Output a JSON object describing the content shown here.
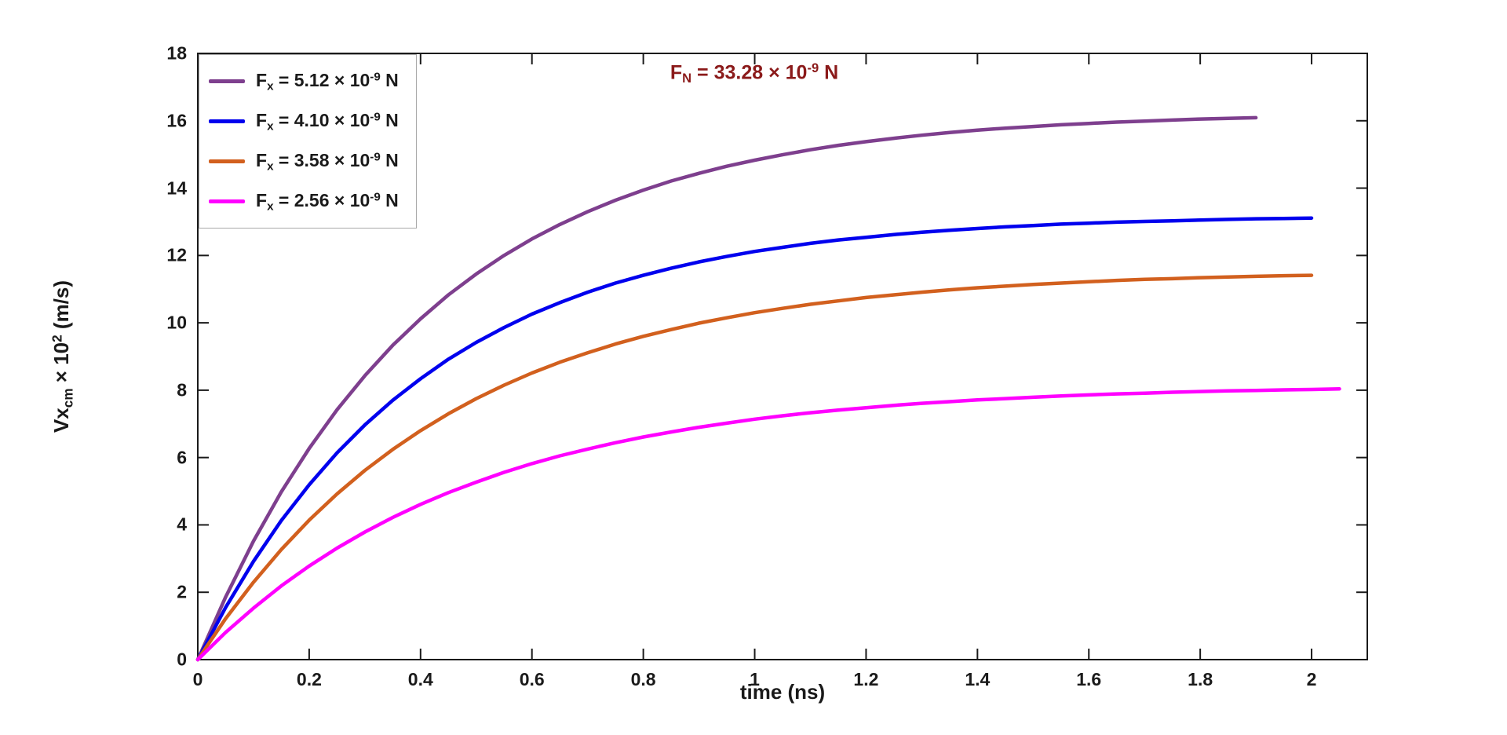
{
  "figure": {
    "background": "#ffffff",
    "axis_color": "#1a1a1a",
    "text_color": "#1a1a1a"
  },
  "annotation": {
    "text": "F_{N} = 33.28 × 10^{-9} N",
    "color": "#8B1A1A"
  },
  "chart_data": {
    "type": "line",
    "title": "",
    "xlabel": "time (ns)",
    "ylabel": "Vx_{cm} × 10^{2} (m/s)",
    "xlim": [
      0,
      2.1
    ],
    "ylim": [
      0,
      18
    ],
    "x_ticks": [
      "0",
      "0.2",
      "0.4",
      "0.6",
      "0.8",
      "1",
      "1.2",
      "1.4",
      "1.6",
      "1.8",
      "2"
    ],
    "y_ticks": [
      "0",
      "2",
      "4",
      "6",
      "8",
      "10",
      "12",
      "14",
      "16",
      "18"
    ],
    "x_start": 0,
    "x_step": 0.05,
    "grid": false,
    "legend_position": "top-left-inside",
    "annotation": "F_N = 33.28 × 10^-9 N",
    "series": [
      {
        "name": "F_{x} = 5.12 × 10^{-9} N",
        "color": "#7E3F8E",
        "values": [
          0,
          1.86,
          3.52,
          4.98,
          6.27,
          7.42,
          8.43,
          9.33,
          10.12,
          10.83,
          11.45,
          12.0,
          12.49,
          12.92,
          13.3,
          13.64,
          13.94,
          14.21,
          14.44,
          14.65,
          14.83,
          14.99,
          15.14,
          15.27,
          15.38,
          15.48,
          15.57,
          15.65,
          15.72,
          15.78,
          15.83,
          15.88,
          15.92,
          15.96,
          15.99,
          16.02,
          16.05,
          16.07,
          16.09
        ]
      },
      {
        "name": "F_{x} = 4.10 × 10^{-9} N",
        "color": "#0000EE",
        "values": [
          0,
          1.55,
          2.92,
          4.13,
          5.19,
          6.14,
          6.97,
          7.7,
          8.34,
          8.92,
          9.42,
          9.86,
          10.26,
          10.6,
          10.91,
          11.18,
          11.41,
          11.62,
          11.81,
          11.97,
          12.12,
          12.24,
          12.36,
          12.46,
          12.54,
          12.62,
          12.69,
          12.75,
          12.8,
          12.85,
          12.89,
          12.93,
          12.96,
          12.99,
          13.01,
          13.03,
          13.05,
          13.07,
          13.09,
          13.1,
          13.11
        ]
      },
      {
        "name": "F_{x} = 3.58 × 10^{-9} N",
        "color": "#D2601E",
        "values": [
          0,
          1.22,
          2.3,
          3.27,
          4.14,
          4.92,
          5.62,
          6.24,
          6.8,
          7.3,
          7.75,
          8.15,
          8.51,
          8.83,
          9.11,
          9.37,
          9.6,
          9.8,
          9.99,
          10.15,
          10.3,
          10.43,
          10.55,
          10.65,
          10.75,
          10.83,
          10.91,
          10.98,
          11.04,
          11.09,
          11.14,
          11.18,
          11.22,
          11.26,
          11.29,
          11.31,
          11.34,
          11.36,
          11.38,
          11.4,
          11.41
        ]
      },
      {
        "name": "F_{x} = 2.56 × 10^{-9} N",
        "color": "#FF00FF",
        "values": [
          0,
          0.81,
          1.53,
          2.19,
          2.78,
          3.31,
          3.79,
          4.22,
          4.61,
          4.96,
          5.27,
          5.56,
          5.82,
          6.05,
          6.25,
          6.44,
          6.61,
          6.76,
          6.9,
          7.02,
          7.14,
          7.24,
          7.33,
          7.41,
          7.48,
          7.55,
          7.61,
          7.66,
          7.71,
          7.75,
          7.79,
          7.83,
          7.86,
          7.89,
          7.91,
          7.94,
          7.96,
          7.98,
          7.99,
          8.01,
          8.02,
          8.04
        ]
      }
    ]
  }
}
